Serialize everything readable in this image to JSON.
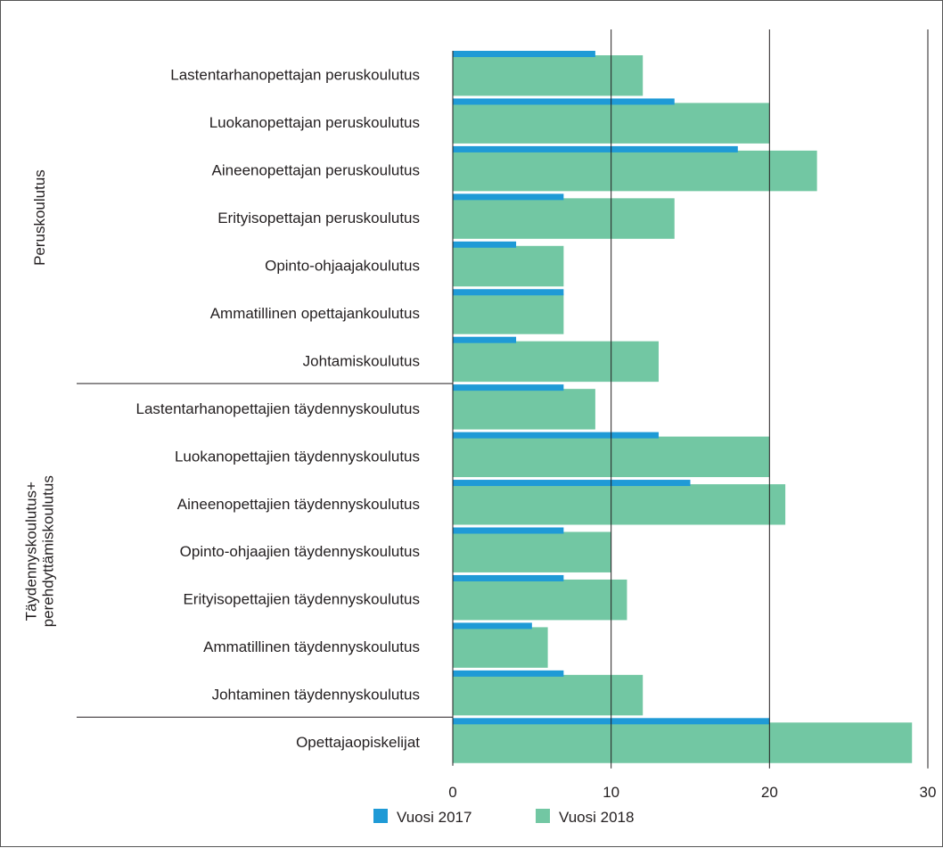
{
  "chart_data": {
    "type": "bar",
    "orientation": "horizontal",
    "categories": [
      "Lastentarhanopettajan peruskoulutus",
      "Luokanopettajan peruskoulutus",
      "Aineenopettajan peruskoulutus",
      "Erityisopettajan peruskoulutus",
      "Opinto-ohjaajakoulutus",
      "Ammatillinen opettajankoulutus",
      "Johtamiskoulutus",
      "Lastentarhanopettajien täydennyskoulutus",
      "Luokanopettajien täydennyskoulutus",
      "Aineenopettajien täydennyskoulutus",
      "Opinto-ohjaajien täydennyskoulutus",
      "Erityisopettajien täydennyskoulutus",
      "Ammatillinen täydennyskoulutus",
      "Johtaminen täydennyskoulutus",
      "Opettajaopiskelijat"
    ],
    "series": [
      {
        "name": "Vuosi 2017",
        "color": "#1f9ad6",
        "values": [
          9,
          14,
          18,
          7,
          4,
          7,
          4,
          7,
          13,
          15,
          7,
          7,
          5,
          7,
          20
        ]
      },
      {
        "name": "Vuosi 2018",
        "color": "#72c7a3",
        "values": [
          12,
          20,
          23,
          14,
          7,
          7,
          13,
          9,
          20,
          21,
          10,
          11,
          6,
          12,
          29
        ]
      }
    ],
    "groups": [
      {
        "label_lines": [
          "Peruskoulutus"
        ],
        "start": 0,
        "end": 6
      },
      {
        "label_lines": [
          "Täydennyskoulutus+",
          "perehdyttämiskoulutus"
        ],
        "start": 7,
        "end": 13
      },
      {
        "label_lines": [],
        "start": 14,
        "end": 14
      }
    ],
    "title": "",
    "xlabel": "",
    "ylabel": "",
    "xlim": [
      0,
      30
    ],
    "xticks": [
      0,
      10,
      20,
      30
    ],
    "grid": "vertical lines at 10 and 20",
    "legend": "bottom-center"
  }
}
